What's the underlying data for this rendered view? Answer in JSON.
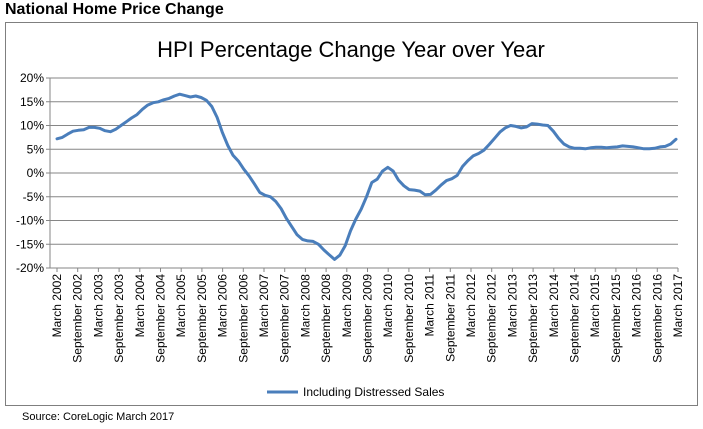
{
  "page": {
    "heading": "National Home Price Change",
    "source": "Source: CoreLogic March 2017"
  },
  "colors": {
    "series": "#4a7ebb",
    "axis": "#868686",
    "grid": "#868686",
    "text": "#000000"
  },
  "chart_data": {
    "type": "line",
    "title": "HPI Percentage Change Year over Year",
    "xlabel": "",
    "ylabel": "",
    "ylim": [
      -20,
      20
    ],
    "y_ticks": [
      20,
      15,
      10,
      5,
      0,
      -5,
      -10,
      -15,
      -20
    ],
    "y_tick_labels": [
      "20%",
      "15%",
      "10%",
      "5%",
      "0%",
      "-5%",
      "-10%",
      "-15%",
      "-20%"
    ],
    "grid": true,
    "legend_position": "bottom",
    "x_tick_labels": [
      "March 2002",
      "September 2002",
      "March 2003",
      "September 2003",
      "March 2004",
      "September 2004",
      "March 2005",
      "September 2005",
      "March 2006",
      "September 2006",
      "March 2007",
      "September 2007",
      "March 2008",
      "September 2008",
      "March 2009",
      "September 2009",
      "March 2010",
      "September 2010",
      "March 2011",
      "September 2011",
      "March 2012",
      "September 2012",
      "March 2013",
      "September 2013",
      "March 2014",
      "September 2014",
      "March 2015",
      "September 2015",
      "March 2016",
      "September 2016",
      "March 2017"
    ],
    "series": [
      {
        "name": "Including Distressed Sales",
        "values": [
          7.2,
          7.5,
          8.2,
          8.8,
          9.0,
          9.1,
          9.6,
          9.6,
          9.4,
          8.9,
          8.7,
          9.2,
          10.0,
          10.8,
          11.6,
          12.3,
          13.4,
          14.3,
          14.8,
          15.0,
          15.4,
          15.7,
          16.2,
          16.6,
          16.3,
          16.0,
          16.2,
          15.9,
          15.3,
          14.0,
          11.7,
          8.5,
          5.8,
          3.7,
          2.5,
          0.8,
          -0.6,
          -2.3,
          -4.1,
          -4.7,
          -5.0,
          -6.0,
          -7.5,
          -9.6,
          -11.3,
          -13.0,
          -14.0,
          -14.3,
          -14.4,
          -15.0,
          -16.2,
          -17.2,
          -18.2,
          -17.3,
          -15.3,
          -12.2,
          -9.7,
          -7.6,
          -5.0,
          -2.0,
          -1.3,
          0.4,
          1.2,
          0.4,
          -1.5,
          -2.7,
          -3.5,
          -3.6,
          -3.8,
          -4.6,
          -4.5,
          -3.6,
          -2.5,
          -1.6,
          -1.2,
          -0.5,
          1.4,
          2.6,
          3.6,
          4.1,
          4.8,
          6.0,
          7.3,
          8.6,
          9.5,
          10.0,
          9.8,
          9.5,
          9.7,
          10.4,
          10.3,
          10.1,
          10.0,
          8.8,
          7.3,
          6.1,
          5.5,
          5.2,
          5.2,
          5.1,
          5.3,
          5.4,
          5.4,
          5.3,
          5.4,
          5.5,
          5.7,
          5.6,
          5.5,
          5.3,
          5.1,
          5.1,
          5.2,
          5.5,
          5.6,
          6.1,
          7.1
        ]
      }
    ]
  }
}
